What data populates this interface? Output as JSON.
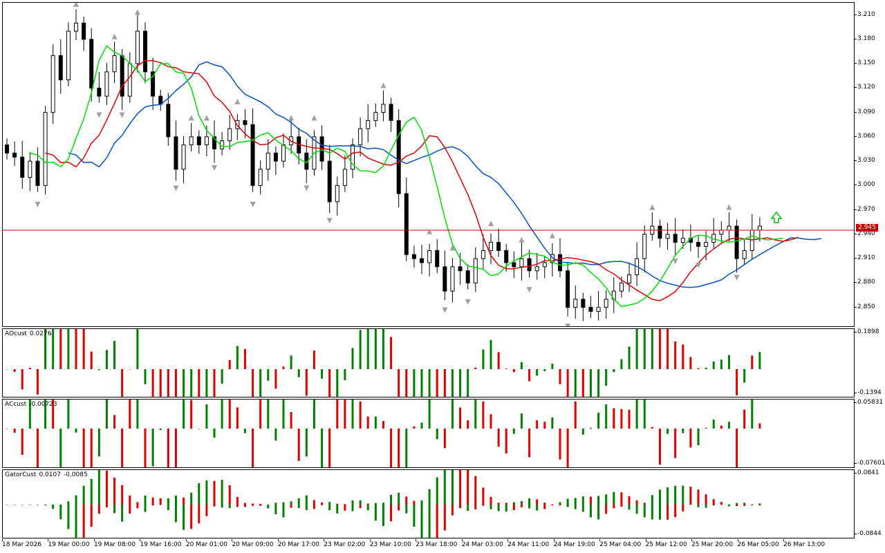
{
  "main_chart": {
    "price_scale": [
      "3.210",
      "3.180",
      "3.150",
      "3.120",
      "3.090",
      "3.060",
      "3.030",
      "3.000",
      "2.970",
      "2.940",
      "2.910",
      "2.880",
      "2.850"
    ],
    "current_price": "2.945",
    "colors": {
      "up": "#ffffff",
      "down": "#000000",
      "bid_line": "#c00000",
      "jaw": "#0050c8",
      "teeth": "#e00000",
      "lips": "#00e000",
      "fractal": "#a0a0a0",
      "arrow": "#00c800"
    },
    "buy_arrow_icon": "up-arrow-icon"
  },
  "ao_panel": {
    "name": "AOcust",
    "value": "0.0276",
    "scale_max": "0.1898",
    "scale_min": "-0.1394"
  },
  "ac_panel": {
    "name": "ACcust",
    "value": "-0.00723",
    "scale_max": "0.05831",
    "scale_min": "-0.07601"
  },
  "gator_panel": {
    "name": "GatorCust",
    "value1": "0.0107",
    "value2": "-0.0085",
    "scale_max": "0.0841",
    "scale_min": "-0.0844"
  },
  "time_axis": [
    "18 Mar 2026",
    "19 Mar 00:00",
    "19 Mar 08:00",
    "19 Mar 16:00",
    "20 Mar 01:00",
    "20 Mar 09:00",
    "20 Mar 17:00",
    "23 Mar 02:00",
    "23 Mar 10:00",
    "23 Mar 18:00",
    "24 Mar 03:00",
    "24 Mar 11:00",
    "24 Mar 19:00",
    "25 Mar 04:00",
    "25 Mar 12:00",
    "25 Mar 20:00",
    "26 Mar 05:00",
    "26 Mar 13:00"
  ],
  "chart_data": {
    "type": "candlestick",
    "price_range": [
      2.825,
      3.225
    ],
    "closes": [
      3.04,
      3.035,
      3.01,
      3.03,
      3.0,
      3.09,
      3.16,
      3.13,
      3.19,
      3.2,
      3.18,
      3.12,
      3.11,
      3.14,
      3.16,
      3.11,
      3.15,
      3.19,
      3.14,
      3.11,
      3.1,
      3.06,
      3.02,
      3.05,
      3.06,
      3.05,
      3.06,
      3.045,
      3.055,
      3.07,
      3.08,
      3.075,
      3.0,
      3.02,
      3.04,
      3.03,
      3.05,
      3.06,
      3.04,
      3.02,
      3.06,
      3.03,
      2.98,
      3.0,
      3.02,
      3.05,
      3.07,
      3.08,
      3.09,
      3.1,
      3.08,
      2.99,
      2.915,
      2.91,
      2.905,
      2.92,
      2.9,
      2.87,
      2.9,
      2.895,
      2.88,
      2.91,
      2.92,
      2.93,
      2.92,
      2.905,
      2.9,
      2.91,
      2.895,
      2.9,
      2.905,
      2.915,
      2.895,
      2.85,
      2.86,
      2.85,
      2.845,
      2.85,
      2.86,
      2.87,
      2.88,
      2.89,
      2.91,
      2.94,
      2.95,
      2.935,
      2.94,
      2.93,
      2.935,
      2.93,
      2.925,
      2.93,
      2.94,
      2.945,
      2.95,
      2.91,
      2.92,
      2.945,
      2.95
    ],
    "ao_values": [
      0.0276
    ],
    "ac_values": [
      -0.00723
    ],
    "gator_values": [
      0.0107,
      -0.0085
    ]
  }
}
